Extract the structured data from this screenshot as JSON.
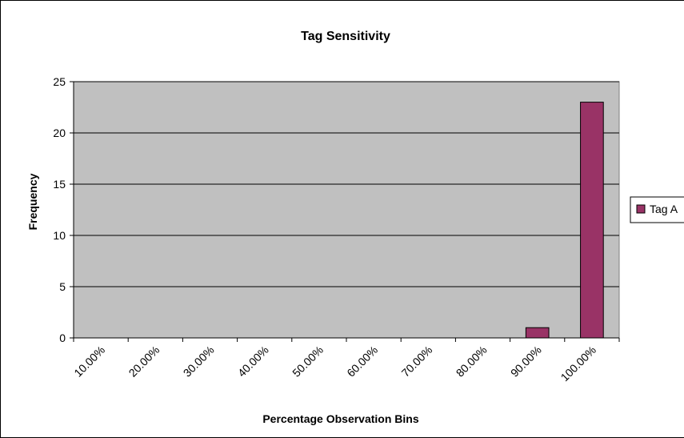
{
  "chart_data": {
    "type": "bar",
    "title": "Tag Sensitivity",
    "xlabel": "Percentage Observation Bins",
    "ylabel": "Frequency",
    "categories": [
      "10.00%",
      "20.00%",
      "30.00%",
      "40.00%",
      "50.00%",
      "60.00%",
      "70.00%",
      "80.00%",
      "90.00%",
      "100.00%"
    ],
    "series": [
      {
        "name": "Tag A",
        "values": [
          0,
          0,
          0,
          0,
          0,
          0,
          0,
          0,
          1,
          23
        ],
        "color": "#993366"
      }
    ],
    "ylim": [
      0,
      25
    ],
    "yticks": [
      0,
      5,
      10,
      15,
      20,
      25
    ],
    "grid": true,
    "plot_background": "#c0c0c0",
    "legend_position": "right"
  }
}
